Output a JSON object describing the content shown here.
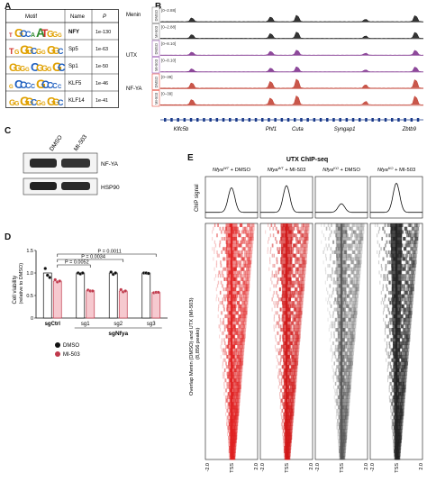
{
  "panels": {
    "a": {
      "label": "A",
      "headers": [
        "Motif",
        "Name",
        "P"
      ],
      "rows": [
        {
          "name": "NFY",
          "p": "1e-130",
          "bold": true
        },
        {
          "name": "Sp5",
          "p": "1e-63",
          "bold": false
        },
        {
          "name": "Sp1",
          "p": "1e-50",
          "bold": false
        },
        {
          "name": "KLF5",
          "p": "1e-46",
          "bold": false
        },
        {
          "name": "KLF14",
          "p": "1e-41",
          "bold": false
        }
      ],
      "motif_letters": [
        "TGCCAATGGG",
        "TGGGCGGGGC",
        "GGGGCGGGGC",
        "GCCCCGCCCC",
        "GGGGCGGGGC"
      ]
    },
    "b": {
      "label": "B",
      "tracks": [
        {
          "group": "Menin",
          "condition": "DMSO",
          "range": "[0–2.88]",
          "color": "#111111",
          "cond_color": "#888888"
        },
        {
          "group": "",
          "condition": "MI-503",
          "range": "[0–2.88]",
          "color": "#111111",
          "cond_color": "#888888"
        },
        {
          "group": "UTX",
          "condition": "DMSO",
          "range": "[0–8.10]",
          "color": "#7a2a8a",
          "cond_color": "#9b59b6"
        },
        {
          "group": "",
          "condition": "MI-503",
          "range": "[0–8.10]",
          "color": "#7a2a8a",
          "cond_color": "#9b59b6"
        },
        {
          "group": "NF-YA",
          "condition": "DMSO",
          "range": "[0–39]",
          "color": "#c0392b",
          "cond_color": "#e74c3c"
        },
        {
          "group": "",
          "condition": "MI-503",
          "range": "[0–39]",
          "color": "#c0392b",
          "cond_color": "#e74c3c"
        }
      ],
      "genes": [
        "Klfc5b",
        "Phf1",
        "Cuta",
        "Syngap1",
        "Zbtb9"
      ]
    },
    "c": {
      "label": "C",
      "lanes": [
        "DMSO",
        "MI-503"
      ],
      "blots": [
        "NF-YA",
        "HSP90"
      ]
    },
    "d": {
      "label": "D",
      "ylabel": "Cell viability\n(relative to DMSO)",
      "yticks": [
        "0",
        "0.5",
        "1.0",
        "1.5"
      ],
      "p_values": [
        "P = 0.0011",
        "P = 0.0034",
        "P = 0.0052"
      ],
      "groups": [
        "sgCtrl",
        "sg1",
        "sg2",
        "sg3"
      ],
      "group_caption": "sgNfya",
      "legend": [
        {
          "label": "DMSO",
          "color": "#111111"
        },
        {
          "label": "MI-503",
          "color": "#c0394b"
        }
      ]
    },
    "e": {
      "label": "E",
      "title": "UTX ChIP-seq",
      "columns": [
        {
          "geno": "Nfya",
          "sup": "WT",
          "treat": " + DMSO",
          "color": "#e02020"
        },
        {
          "geno": "Nfya",
          "sup": "WT",
          "treat": " + MI-503",
          "color": "#d01818"
        },
        {
          "geno": "Nfya",
          "sup": "KO",
          "treat": " + DMSO",
          "color": "#555555"
        },
        {
          "geno": "Nfya",
          "sup": "KO",
          "treat": " + MI-503",
          "color": "#222222"
        }
      ],
      "profile_ylabel": "ChIP signal",
      "heatmap_ylabel": "Overlap Menin (DMSO) and UTX (MI-503)\n(8,856 peaks)",
      "xticks": [
        "-2.0",
        "TSS",
        "2.0"
      ]
    }
  },
  "chart_data": {
    "type": "bar",
    "categories": [
      "sgCtrl",
      "sg1",
      "sg2",
      "sg3"
    ],
    "series": [
      {
        "name": "DMSO",
        "values": [
          1.0,
          1.0,
          1.0,
          1.0
        ]
      },
      {
        "name": "MI-503",
        "values": [
          0.82,
          0.61,
          0.6,
          0.57
        ]
      }
    ],
    "points": {
      "DMSO": [
        [
          1.1,
          0.95,
          0.9
        ],
        [
          1.0,
          0.98,
          1.0
        ],
        [
          1.02,
          0.97,
          1.0
        ],
        [
          1.0,
          1.0,
          0.99
        ]
      ],
      "MI-503": [
        [
          0.85,
          0.8,
          0.82
        ],
        [
          0.62,
          0.6,
          0.6
        ],
        [
          0.63,
          0.58,
          0.6
        ],
        [
          0.56,
          0.57,
          0.57
        ]
      ]
    },
    "ylabel": "Cell viability (relative to DMSO)",
    "ylim": [
      0,
      1.5
    ],
    "annotations": [
      "P = 0.0011",
      "P = 0.0034",
      "P = 0.0052"
    ],
    "legend": "bottom"
  }
}
